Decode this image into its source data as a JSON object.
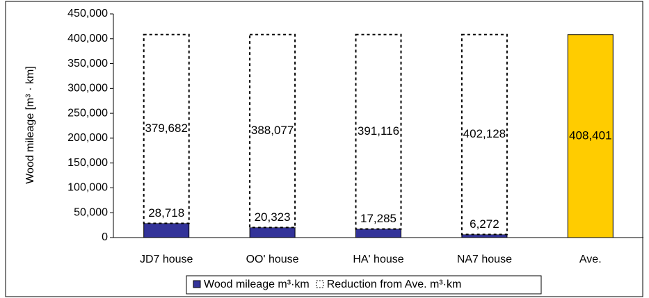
{
  "chart_data": {
    "type": "stacked_bar",
    "ylabel": "Wood mileage [m³ · km]",
    "categories": [
      "JD7 house",
      "OO' house",
      "HA' house",
      "NA7 house",
      "Ave."
    ],
    "series": [
      {
        "name": "Wood mileage m³·km",
        "color": "#333399",
        "colors": [
          "#333399",
          "#333399",
          "#333399",
          "#333399",
          "#ffcc00"
        ],
        "values": [
          28718,
          20323,
          17285,
          6272,
          408401
        ],
        "value_labels": [
          "28,718",
          "20,323",
          "17,285",
          "6,272",
          "408,401"
        ]
      },
      {
        "name": "Reduction from Ave. m³·km",
        "color": "#ffffff",
        "dashed": true,
        "values": [
          379682,
          388077,
          391116,
          402128,
          null
        ],
        "value_labels": [
          "379,682",
          "388,077",
          "391,116",
          "402,128",
          null
        ]
      }
    ],
    "ylim": [
      0,
      450000
    ],
    "yticks": [
      0,
      {
        "value": 50000,
        "label": "50,000"
      },
      {
        "value": 100000,
        "label": "100,000"
      },
      {
        "value": 150000,
        "label": "150,000"
      },
      {
        "value": 200000,
        "label": "200,000"
      },
      {
        "value": 250000,
        "label": "250,000"
      },
      {
        "value": 300000,
        "label": "300,000"
      },
      {
        "value": 350000,
        "label": "350,000"
      },
      {
        "value": 400000,
        "label": "400,000"
      },
      {
        "value": 450000,
        "label": "450,000"
      }
    ],
    "legend": "bottom",
    "grid": false
  }
}
